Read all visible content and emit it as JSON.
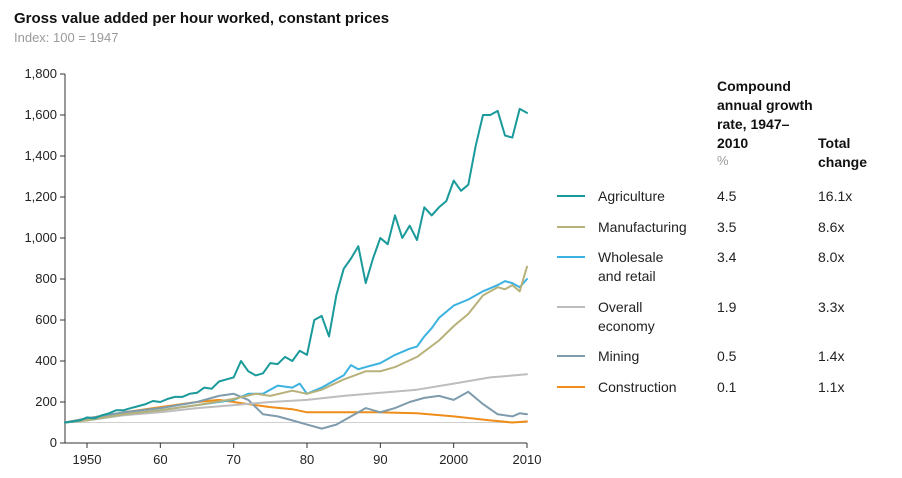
{
  "chart_data": {
    "type": "line",
    "title": "Gross value added per hour worked, constant prices",
    "subtitle": "Index: 100 = 1947",
    "xlabel": "",
    "ylabel": "",
    "xlim": [
      1947,
      2010
    ],
    "ylim": [
      0,
      1800
    ],
    "x_ticks": [
      1950,
      1960,
      1970,
      1980,
      1990,
      2000,
      2010
    ],
    "x_tick_labels": [
      "1950",
      "60",
      "70",
      "80",
      "90",
      "2000",
      "2010"
    ],
    "y_ticks": [
      0,
      200,
      400,
      600,
      800,
      1000,
      1200,
      1400,
      1600,
      1800
    ],
    "y_tick_labels": [
      "0",
      "200",
      "400",
      "600",
      "800",
      "1,000",
      "1,200",
      "1,400",
      "1,600",
      "1,800"
    ],
    "reference_line": 100,
    "grid": false,
    "legend_position": "right",
    "table_headers": {
      "rate": "Compound annual growth rate, 1947–2010",
      "rate_unit": "%",
      "total": "Total change"
    },
    "series": [
      {
        "name": "Agriculture",
        "color": "#1a9a9a",
        "rate": "4.5",
        "total": "16.1x",
        "x": [
          1947,
          1948,
          1949,
          1950,
          1951,
          1952,
          1953,
          1954,
          1955,
          1956,
          1957,
          1958,
          1959,
          1960,
          1961,
          1962,
          1963,
          1964,
          1965,
          1966,
          1967,
          1968,
          1969,
          1970,
          1971,
          1972,
          1973,
          1974,
          1975,
          1976,
          1977,
          1978,
          1979,
          1980,
          1981,
          1982,
          1983,
          1984,
          1985,
          1986,
          1987,
          1988,
          1989,
          1990,
          1991,
          1992,
          1993,
          1994,
          1995,
          1996,
          1997,
          1998,
          1999,
          2000,
          2001,
          2002,
          2003,
          2004,
          2005,
          2006,
          2007,
          2008,
          2009,
          2010
        ],
        "values": [
          100,
          105,
          110,
          125,
          120,
          135,
          145,
          160,
          160,
          170,
          180,
          190,
          205,
          200,
          215,
          225,
          225,
          240,
          245,
          270,
          265,
          300,
          310,
          320,
          400,
          350,
          330,
          340,
          390,
          385,
          420,
          400,
          450,
          430,
          600,
          620,
          520,
          720,
          850,
          900,
          960,
          780,
          900,
          1000,
          970,
          1110,
          1000,
          1060,
          990,
          1150,
          1110,
          1150,
          1180,
          1280,
          1230,
          1260,
          1450,
          1600,
          1600,
          1620,
          1500,
          1490,
          1630,
          1610
        ]
      },
      {
        "name": "Manufacturing",
        "color": "#b8b17a",
        "rate": "3.5",
        "total": "8.6x",
        "x": [
          1947,
          1950,
          1955,
          1960,
          1965,
          1970,
          1973,
          1975,
          1978,
          1980,
          1982,
          1985,
          1988,
          1990,
          1992,
          1995,
          1998,
          2000,
          2002,
          2004,
          2006,
          2007,
          2008,
          2009,
          2010
        ],
        "values": [
          100,
          110,
          140,
          160,
          185,
          215,
          240,
          230,
          255,
          240,
          260,
          310,
          350,
          350,
          370,
          420,
          500,
          570,
          630,
          720,
          760,
          750,
          770,
          740,
          860
        ]
      },
      {
        "name": "Wholesale and retail",
        "color": "#3bb2e0",
        "rate": "3.4",
        "total": "8.0x",
        "x": [
          1947,
          1950,
          1955,
          1960,
          1965,
          1970,
          1972,
          1974,
          1976,
          1978,
          1979,
          1980,
          1982,
          1984,
          1985,
          1986,
          1987,
          1988,
          1990,
          1992,
          1994,
          1995,
          1996,
          1997,
          1998,
          2000,
          2002,
          2004,
          2006,
          2007,
          2008,
          2009,
          2010
        ],
        "values": [
          100,
          110,
          140,
          160,
          185,
          210,
          240,
          240,
          280,
          270,
          290,
          240,
          270,
          310,
          330,
          380,
          360,
          370,
          390,
          430,
          460,
          470,
          520,
          560,
          610,
          670,
          700,
          740,
          770,
          790,
          780,
          760,
          800
        ]
      },
      {
        "name": "Overall economy",
        "color": "#bdbdbd",
        "rate": "1.9",
        "total": "3.3x",
        "x": [
          1947,
          1950,
          1955,
          1960,
          1965,
          1970,
          1975,
          1980,
          1985,
          1990,
          1995,
          2000,
          2005,
          2010
        ],
        "values": [
          100,
          110,
          135,
          150,
          170,
          185,
          200,
          210,
          230,
          245,
          260,
          290,
          320,
          335
        ]
      },
      {
        "name": "Mining",
        "color": "#7f9cad",
        "rate": "0.5",
        "total": "1.4x",
        "x": [
          1947,
          1950,
          1955,
          1960,
          1965,
          1968,
          1970,
          1972,
          1974,
          1976,
          1978,
          1980,
          1982,
          1984,
          1986,
          1988,
          1990,
          1992,
          1994,
          1996,
          1998,
          2000,
          2002,
          2004,
          2006,
          2008,
          2009,
          2010
        ],
        "values": [
          100,
          120,
          150,
          170,
          200,
          230,
          240,
          210,
          140,
          130,
          110,
          90,
          70,
          90,
          130,
          170,
          150,
          170,
          200,
          220,
          230,
          210,
          250,
          190,
          140,
          130,
          145,
          140
        ]
      },
      {
        "name": "Construction",
        "color": "#ee8d1a",
        "rate": "0.1",
        "total": "1.1x",
        "x": [
          1947,
          1950,
          1955,
          1960,
          1965,
          1968,
          1970,
          1972,
          1975,
          1978,
          1980,
          1985,
          1990,
          1995,
          2000,
          2005,
          2008,
          2010
        ],
        "values": [
          100,
          120,
          150,
          175,
          200,
          210,
          200,
          190,
          175,
          165,
          150,
          150,
          150,
          145,
          130,
          110,
          100,
          105
        ]
      }
    ]
  }
}
